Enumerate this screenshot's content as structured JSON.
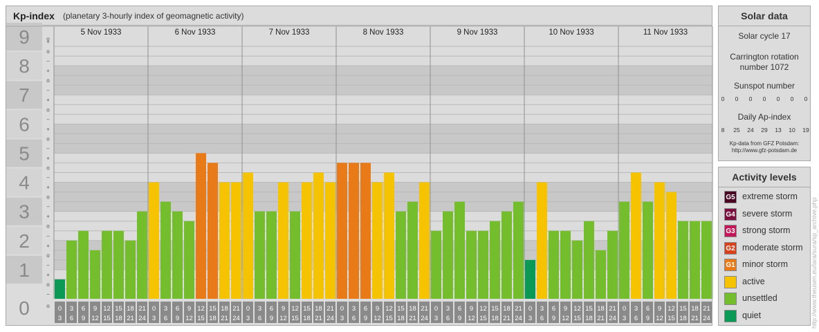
{
  "header": {
    "title": "Kp-index",
    "subtitle": "(planetary 3-hourly index of geomagnetic activity)"
  },
  "chart_data": {
    "type": "bar",
    "ylim": [
      0,
      9
    ],
    "y_ticks": [
      "0",
      "1",
      "2",
      "3",
      "4",
      "5",
      "6",
      "7",
      "8",
      "9"
    ],
    "thirds_labels": [
      "−",
      "o",
      "+"
    ],
    "days": [
      "5 Nov 1933",
      "6 Nov 1933",
      "7 Nov 1933",
      "8 Nov 1933",
      "9 Nov 1933",
      "10 Nov 1933",
      "11 Nov 1933"
    ],
    "hour_labels": [
      [
        "0",
        "3"
      ],
      [
        "3",
        "6"
      ],
      [
        "6",
        "9"
      ],
      [
        "9",
        "12"
      ],
      [
        "12",
        "15"
      ],
      [
        "15",
        "18"
      ],
      [
        "18",
        "21"
      ],
      [
        "21",
        "24"
      ]
    ],
    "values": [
      [
        0.667,
        2.0,
        2.333,
        1.667,
        2.333,
        2.333,
        2.0,
        3.0
      ],
      [
        4.0,
        3.333,
        3.0,
        2.667,
        5.0,
        4.667,
        4.0,
        4.0
      ],
      [
        4.333,
        3.0,
        3.0,
        4.0,
        3.0,
        4.0,
        4.333,
        4.0
      ],
      [
        4.667,
        4.667,
        4.667,
        4.0,
        4.333,
        3.0,
        3.333,
        4.0
      ],
      [
        2.333,
        3.0,
        3.333,
        2.333,
        2.333,
        2.667,
        3.0,
        3.333
      ],
      [
        1.333,
        4.0,
        2.333,
        2.333,
        2.0,
        2.667,
        1.667,
        2.333
      ],
      [
        3.333,
        4.333,
        3.333,
        4.0,
        3.667,
        2.667,
        2.667,
        2.667
      ]
    ],
    "colors": {
      "quiet": "#0a9a55",
      "unsettled": "#74be2d",
      "active": "#f5c300",
      "G1": "#e87b17",
      "G2": "#d7421c",
      "G3": "#c2185b",
      "G4": "#7b1040",
      "G5": "#4a0522"
    },
    "legend_position": "right"
  },
  "solar": {
    "title": "Solar data",
    "cycle": "Solar cycle 17",
    "carrington_line1": "Carrington rotation",
    "carrington_line2": "number 1072",
    "sunspot_label": "Sunspot number",
    "sunspot_values": [
      "0",
      "0",
      "0",
      "0",
      "0",
      "0",
      "0"
    ],
    "ap_label": "Daily Ap-index",
    "ap_values": [
      "8",
      "25",
      "24",
      "29",
      "13",
      "10",
      "19"
    ],
    "source_line1": "Kp-data from GFZ Potsdam:",
    "source_line2": "http://www.gfz-potsdam.de"
  },
  "levels": {
    "title": "Activity levels",
    "items": [
      {
        "code": "G5",
        "label": "extreme storm",
        "color": "#4a0522"
      },
      {
        "code": "G4",
        "label": "severe storm",
        "color": "#7b1040"
      },
      {
        "code": "G3",
        "label": "strong storm",
        "color": "#c2185b"
      },
      {
        "code": "G2",
        "label": "moderate storm",
        "color": "#d7421c"
      },
      {
        "code": "G1",
        "label": "minor storm",
        "color": "#e87b17"
      },
      {
        "code": "",
        "label": "active",
        "color": "#f5c300"
      },
      {
        "code": "",
        "label": "unsettled",
        "color": "#74be2d"
      },
      {
        "code": "",
        "label": "quiet",
        "color": "#0a9a55"
      }
    ]
  },
  "credit": "http://www.theusen.eu/lara/sura/sp_archive.php"
}
